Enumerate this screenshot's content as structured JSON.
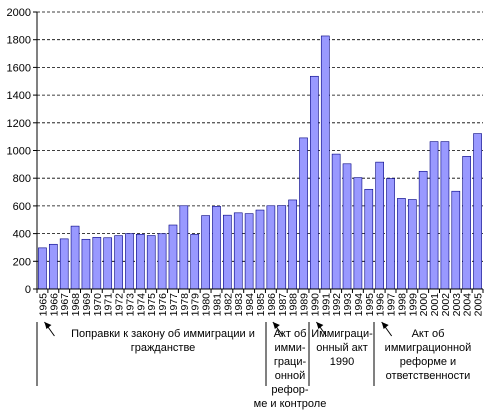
{
  "chart_data": {
    "type": "bar",
    "categories": [
      "1965",
      "1966",
      "1967",
      "1968",
      "1969",
      "1970",
      "1971",
      "1972",
      "1973",
      "1974",
      "1975",
      "1976",
      "1977",
      "1978",
      "1979",
      "1980",
      "1981",
      "1982",
      "1983",
      "1984",
      "1985",
      "1986",
      "1987",
      "1988",
      "1989",
      "1990",
      "1991",
      "1992",
      "1993",
      "1994",
      "1995",
      "1996",
      "1997",
      "1998",
      "1999",
      "2000",
      "2001",
      "2002",
      "2003",
      "2004",
      "2005"
    ],
    "values": [
      297,
      323,
      362,
      454,
      359,
      373,
      370,
      385,
      400,
      395,
      386,
      399,
      462,
      601,
      394,
      530,
      597,
      533,
      550,
      544,
      570,
      601,
      602,
      643,
      1091,
      1536,
      1827,
      974,
      904,
      804,
      720,
      916,
      798,
      654,
      646,
      850,
      1064,
      1064,
      706,
      958,
      1122
    ],
    "ylim": [
      0,
      2000
    ],
    "yticks": [
      0,
      200,
      400,
      600,
      800,
      1000,
      1200,
      1400,
      1600,
      1800,
      2000
    ],
    "bar_color": "#9999ff",
    "bar_edge": "#000080",
    "grid": "dashed horizontal",
    "annotations": [
      {
        "label": "Поправки к закону об иммиграции и гражданстве",
        "text": "Поправки к закону об иммиграции и\nгражданстве",
        "category": "1965"
      },
      {
        "label": "Акт об иммиграционной реформе и контроле",
        "text": "Акт об\nимми-\nграци-\nонной\nрефор-\nме и контроле",
        "category": "1986"
      },
      {
        "label": "Иммиграционный акт 1990",
        "text": "Иммиграци-\nонный акт\n1990",
        "category": "1990"
      },
      {
        "label": "Акт об иммиграционной реформе и ответственности",
        "text": "Акт об\nиммиграционной\nреформе и\nответственности",
        "category": "1996"
      }
    ]
  }
}
